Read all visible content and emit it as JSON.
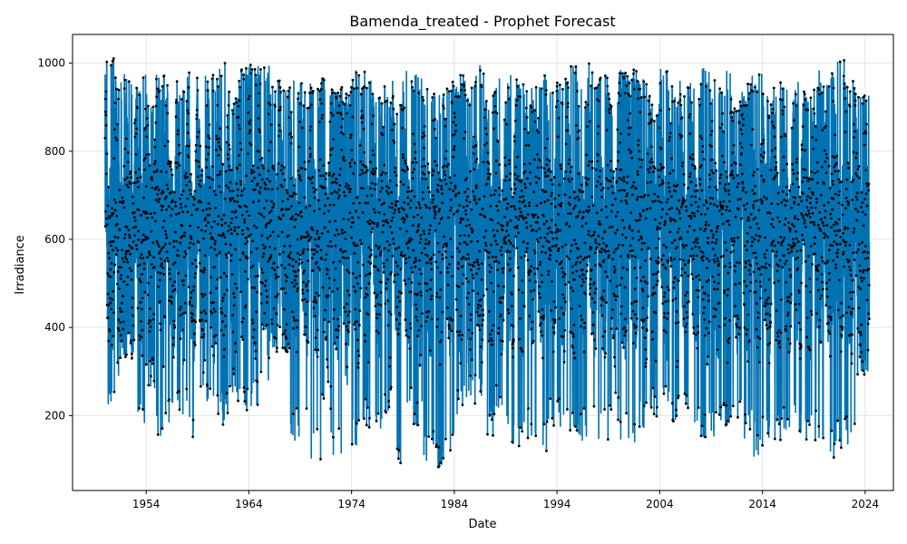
{
  "chart_data": {
    "type": "line",
    "title": "Bamenda_treated - Prophet Forecast",
    "xlabel": "Date",
    "ylabel": "Irradiance",
    "x_ticks": [
      "1954",
      "1964",
      "1974",
      "1984",
      "1994",
      "2004",
      "2014",
      "2024"
    ],
    "y_ticks": [
      200,
      400,
      600,
      800,
      1000
    ],
    "xlim": [
      "1946-11-01",
      "2026-10-01"
    ],
    "ylim": [
      30,
      1065
    ],
    "grid": true,
    "colors": {
      "forecast_line": "#0072B2",
      "observed_points": "#000000",
      "grid": "#e5e5e5",
      "axes": "#000000"
    },
    "series": [
      {
        "kind": "forecast-line",
        "x_start": "1950-01-01",
        "x_end": "2024-06-01",
        "monthly_min_envelope": [
          200,
          260,
          330,
          158,
          255,
          142,
          160,
          195,
          135,
          225,
          232,
          178,
          230,
          185,
          200,
          265,
          345,
          345,
          140,
          155,
          100,
          205,
          105,
          250,
          120,
          165,
          138,
          205,
          75,
          220,
          155,
          95,
          80,
          85,
          190,
          240,
          225,
          145,
          190,
          120,
          125,
          145,
          103,
          170,
          165,
          158,
          140,
          160,
          145,
          180,
          140,
          120,
          160,
          190,
          200,
          185,
          200,
          175,
          128,
          150,
          175,
          160,
          135,
          105,
          130,
          135,
          140,
          145,
          140,
          140,
          88,
          120,
          125,
          285
        ],
        "annual_max_envelope": [
          1020,
          975,
          965,
          975,
          930,
          975,
          985,
          965,
          995,
          990,
          975,
          1000,
          935,
          1005,
          1000,
          1005,
          960,
          945,
          965,
          955,
          960,
          990,
          940,
          945,
          985,
          1000,
          930,
          960,
          925,
          985,
          975,
          950,
          930,
          960,
          975,
          960,
          1000,
          935,
          970,
          975,
          965,
          945,
          980,
          950,
          965,
          1000,
          945,
          1000,
          990,
          930,
          985,
          1000,
          965,
          925,
          990,
          960,
          965,
          945,
          990,
          970,
          985,
          915,
          955,
          990,
          930,
          965,
          945,
          960,
          935,
          985,
          985,
          1020,
          960,
          930
        ]
      },
      {
        "kind": "observed-points",
        "x_start": "1950-01-01",
        "x_end": "2024-06-01"
      }
    ]
  }
}
